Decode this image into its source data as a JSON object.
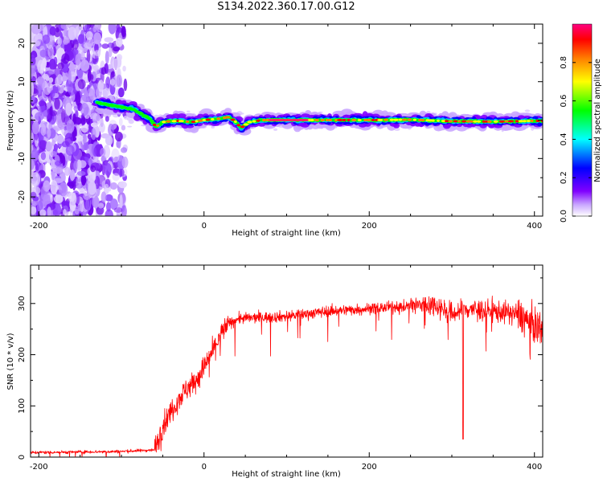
{
  "title": "S134.2022.360.17.00.G12",
  "chart_data": [
    {
      "type": "heatmap",
      "xlabel": "Height of straight line (km)",
      "ylabel": "Frequency (Hz)",
      "xlim": [
        -210,
        410
      ],
      "ylim": [
        -25,
        25
      ],
      "x_ticks": [
        -200,
        0,
        200,
        400
      ],
      "y_ticks": [
        -20,
        -10,
        0,
        10,
        20
      ],
      "grid": false,
      "colorbar": {
        "label": "Normalized spectral amplitude",
        "range": [
          0,
          1
        ],
        "ticks": [
          "0.0",
          "0.2",
          "0.4",
          "0.6",
          "0.8"
        ],
        "colors": [
          "#ffffff",
          "#8000ff",
          "#0000ff",
          "#00ffff",
          "#00ff00",
          "#ffff00",
          "#ff8000",
          "#ff0000",
          "#ff0080"
        ]
      },
      "ridge": {
        "x": [
          -130,
          -110,
          -95,
          -85,
          -75,
          -65,
          -58,
          -50,
          -40,
          -30,
          -15,
          0,
          20,
          30,
          38,
          45,
          55,
          70,
          100,
          150,
          200,
          250,
          300,
          350,
          400
        ],
        "frequency": [
          4.5,
          3.8,
          3.2,
          2.8,
          1.5,
          0.2,
          -1.8,
          -0.5,
          -0.3,
          -0.2,
          -0.5,
          0.0,
          0.4,
          0.8,
          -0.4,
          -2.0,
          -0.5,
          0.0,
          0.0,
          0.0,
          0.0,
          0.1,
          -0.3,
          -0.4,
          -0.2
        ]
      },
      "noise_region_x": [
        -210,
        -95
      ],
      "reference_line_x": [
        70,
        410
      ]
    },
    {
      "type": "line",
      "xlabel": "Height of straight line (km)",
      "ylabel": "SNR (10 * v/v)",
      "xlim": [
        -210,
        410
      ],
      "ylim": [
        0,
        375
      ],
      "x_ticks": [
        -200,
        0,
        200,
        400
      ],
      "y_ticks": [
        0,
        100,
        200,
        300
      ],
      "grid": false,
      "color": "#ff0000",
      "series": [
        {
          "x": [
            -210,
            -150,
            -100,
            -60,
            -50,
            -40,
            -30,
            -20,
            -10,
            0,
            10,
            20,
            30,
            40,
            60,
            100,
            150,
            200,
            250,
            280,
            300,
            320,
            350,
            380,
            400,
            410
          ],
          "values": [
            9,
            10,
            11,
            14,
            60,
            90,
            115,
            135,
            150,
            175,
            205,
            240,
            260,
            270,
            272,
            275,
            285,
            290,
            295,
            298,
            280,
            290,
            285,
            280,
            255,
            255
          ]
        }
      ]
    }
  ]
}
